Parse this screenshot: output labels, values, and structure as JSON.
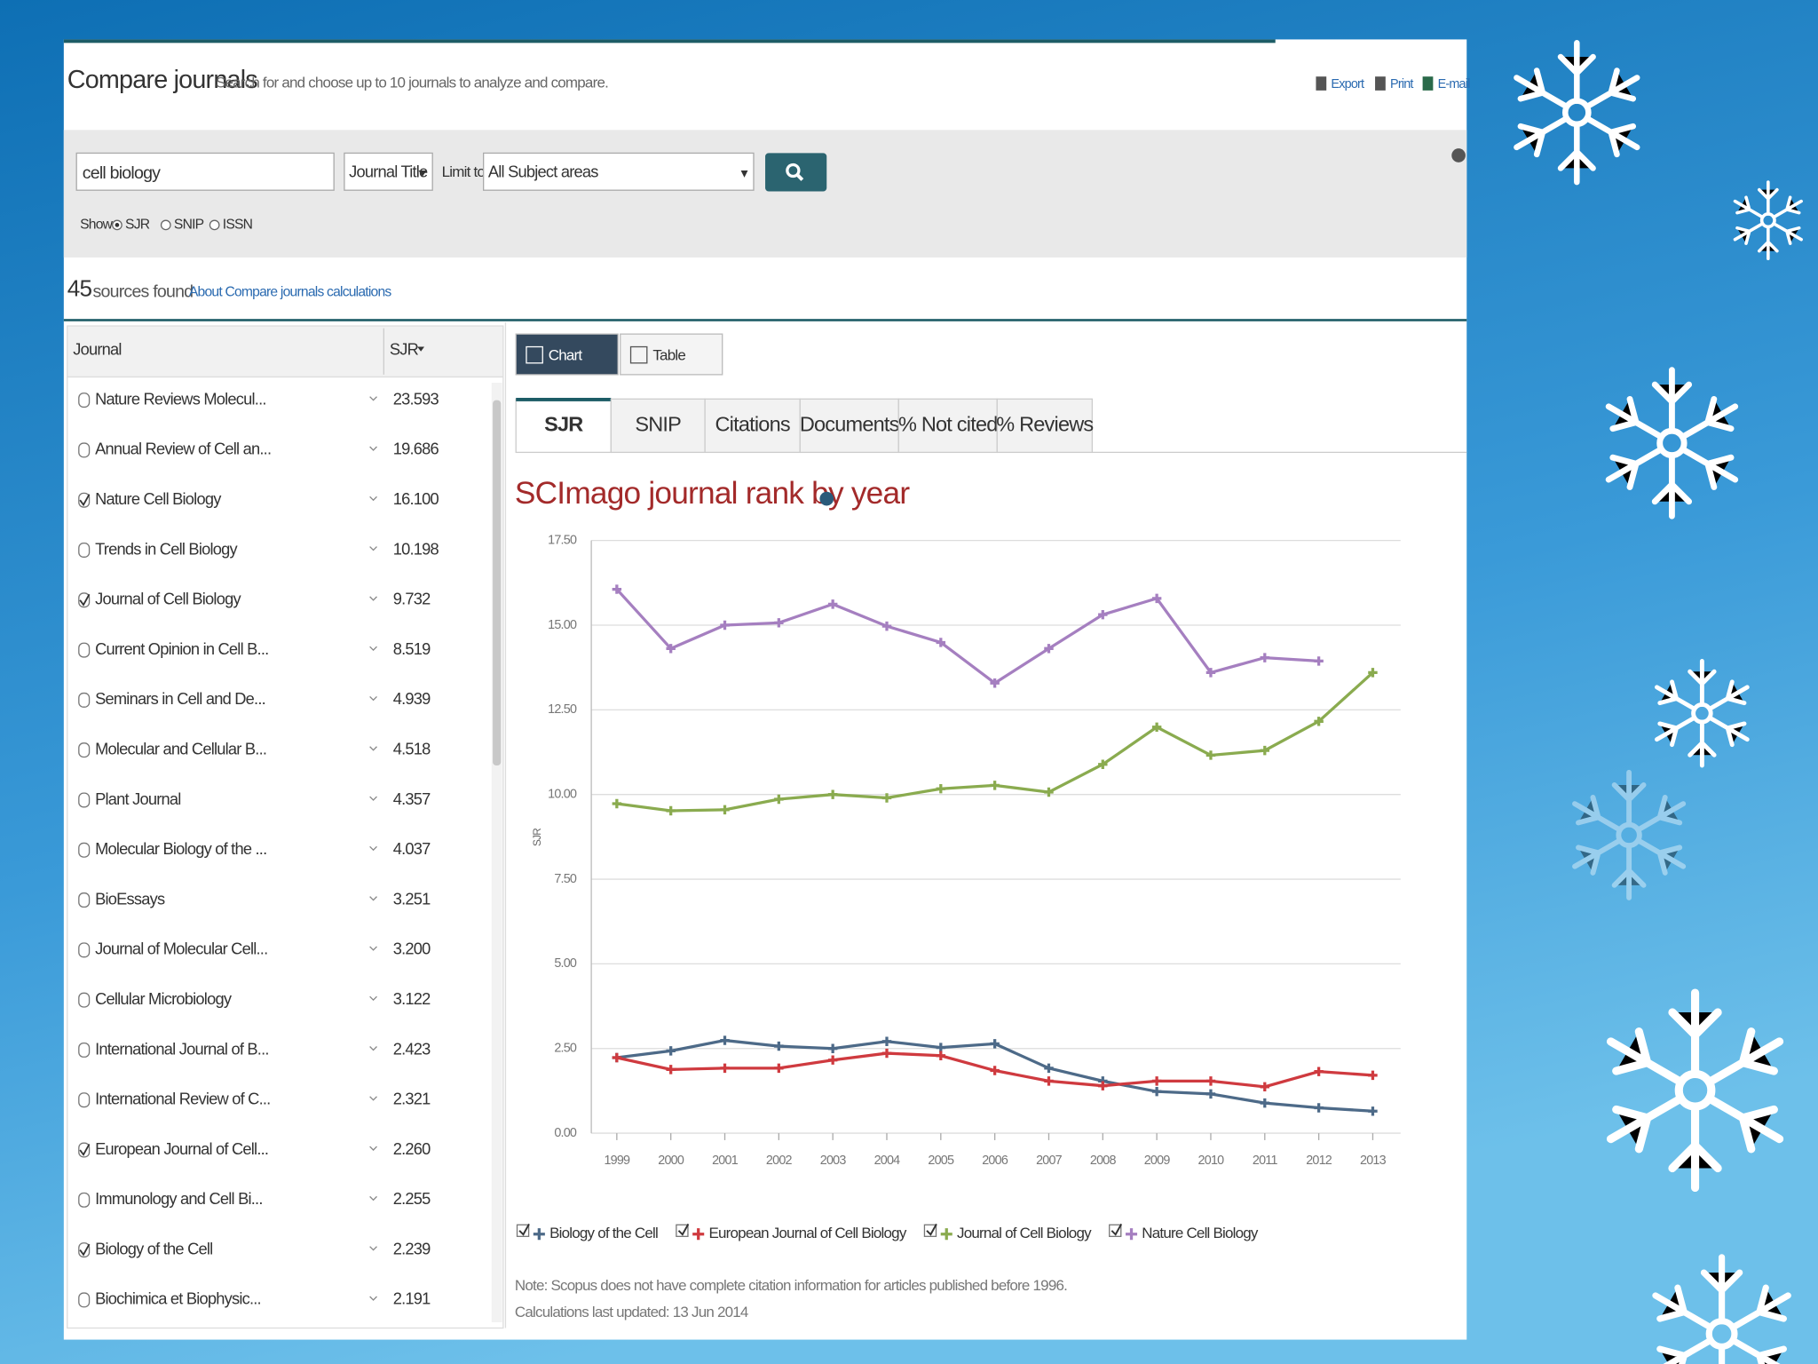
{
  "header": {
    "title": "Compare journals",
    "subtitle": "Search for and choose up to 10 journals to analyze and compare.",
    "actions": [
      "Export",
      "Print",
      "E-mail"
    ]
  },
  "search": {
    "query": "cell biology",
    "field": "Journal Title",
    "limit_label": "Limit to:",
    "limit": "All Subject areas",
    "show_label": "Show:",
    "show_options": [
      "SJR",
      "SNIP",
      "ISSN"
    ]
  },
  "results": {
    "count": "45",
    "count_text": "sources found",
    "link": "About Compare journals calculations"
  },
  "table": {
    "headers": [
      "Journal",
      "SJR"
    ],
    "rows": [
      {
        "name": "Nature Reviews Molecul...",
        "sjr": "23.593",
        "checked": false
      },
      {
        "name": "Annual Review of Cell an...",
        "sjr": "19.686",
        "checked": false
      },
      {
        "name": "Nature Cell Biology",
        "sjr": "16.100",
        "checked": true
      },
      {
        "name": "Trends in Cell Biology",
        "sjr": "10.198",
        "checked": false
      },
      {
        "name": "Journal of Cell Biology",
        "sjr": "9.732",
        "checked": true
      },
      {
        "name": "Current Opinion in Cell B...",
        "sjr": "8.519",
        "checked": false
      },
      {
        "name": "Seminars in Cell and De...",
        "sjr": "4.939",
        "checked": false
      },
      {
        "name": "Molecular and Cellular B...",
        "sjr": "4.518",
        "checked": false
      },
      {
        "name": "Plant Journal",
        "sjr": "4.357",
        "checked": false
      },
      {
        "name": "Molecular Biology of the ...",
        "sjr": "4.037",
        "checked": false
      },
      {
        "name": "BioEssays",
        "sjr": "3.251",
        "checked": false
      },
      {
        "name": "Journal of Molecular Cell...",
        "sjr": "3.200",
        "checked": false
      },
      {
        "name": "Cellular Microbiology",
        "sjr": "3.122",
        "checked": false
      },
      {
        "name": "International Journal of B...",
        "sjr": "2.423",
        "checked": false
      },
      {
        "name": "International Review of C...",
        "sjr": "2.321",
        "checked": false
      },
      {
        "name": "European Journal of Cell...",
        "sjr": "2.260",
        "checked": true
      },
      {
        "name": "Immunology and Cell Bi...",
        "sjr": "2.255",
        "checked": false
      },
      {
        "name": "Biology of the Cell",
        "sjr": "2.239",
        "checked": true
      },
      {
        "name": "Biochimica et Biophysic...",
        "sjr": "2.191",
        "checked": false
      }
    ]
  },
  "view_buttons": [
    "Chart",
    "Table"
  ],
  "tabs": [
    "SJR",
    "SNIP",
    "Citations",
    "Documents",
    "% Not cited",
    "% Reviews"
  ],
  "notes": [
    "Note: Scopus does not have complete citation information for articles published before 1996.",
    "Calculations last updated: 13 Jun 2014"
  ],
  "chart_data": {
    "type": "line",
    "title": "SCImago journal rank by year",
    "y_label": "SJR",
    "categories": [
      "1999",
      "2000",
      "2001",
      "2002",
      "2003",
      "2004",
      "2005",
      "2006",
      "2007",
      "2008",
      "2009",
      "2010",
      "2011",
      "2012",
      "2013"
    ],
    "ylim": [
      0,
      17.5
    ],
    "yticks": [
      {
        "value": 0,
        "label": "0.00"
      },
      {
        "value": 2.5,
        "label": "2.50"
      },
      {
        "value": 5,
        "label": "5.00"
      },
      {
        "value": 7.5,
        "label": "7.50"
      },
      {
        "value": 10,
        "label": "10.00"
      },
      {
        "value": 12.5,
        "label": "12.50"
      },
      {
        "value": 15,
        "label": "15.00"
      },
      {
        "value": 17.5,
        "label": "17.50"
      }
    ],
    "grid": true,
    "series": [
      {
        "name": "Biology of the Cell",
        "color": "#4d6a88",
        "values": [
          2.23,
          2.43,
          2.74,
          2.57,
          2.5,
          2.71,
          2.53,
          2.64,
          1.92,
          1.54,
          1.23,
          1.16,
          0.89,
          0.75,
          0.65
        ]
      },
      {
        "name": "European Journal of Cell Biology",
        "color": "#cf3a3f",
        "values": [
          2.23,
          1.88,
          1.92,
          1.92,
          2.16,
          2.36,
          2.29,
          1.85,
          1.54,
          1.4,
          1.54,
          1.54,
          1.37,
          1.82,
          1.71
        ]
      },
      {
        "name": "Journal of Cell Biology",
        "color": "#8aab4f",
        "values": [
          9.73,
          9.52,
          9.55,
          9.86,
          10.0,
          9.9,
          10.17,
          10.27,
          10.07,
          10.89,
          11.99,
          11.16,
          11.3,
          12.16,
          13.6
        ]
      },
      {
        "name": "Nature Cell Biology",
        "color": "#a57fc0",
        "values": [
          16.06,
          14.31,
          15.0,
          15.07,
          15.62,
          14.97,
          14.49,
          13.29,
          14.31,
          15.31,
          15.79,
          13.6,
          14.04,
          13.94,
          null
        ]
      }
    ]
  }
}
